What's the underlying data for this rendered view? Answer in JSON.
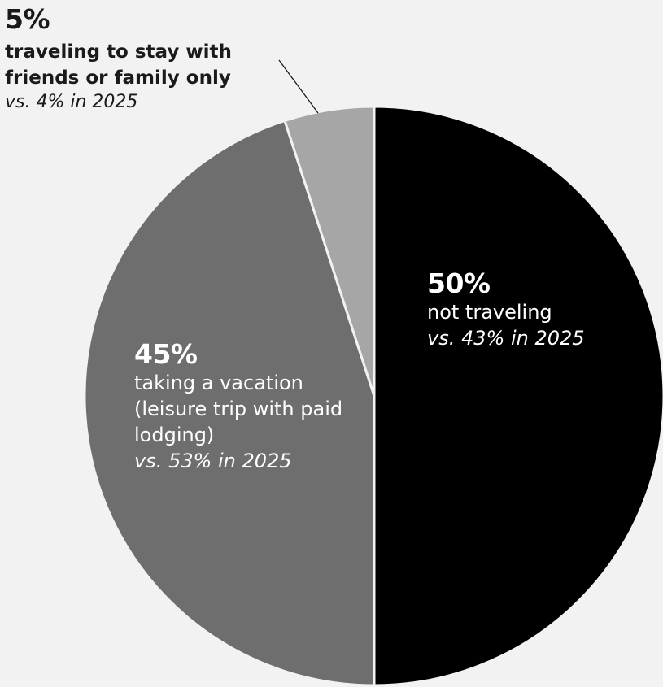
{
  "chart_data": {
    "type": "pie",
    "slices": [
      {
        "value": 50,
        "percent_label": "50%",
        "label": "not traveling",
        "comparison": "vs. 43% in 2025",
        "color": "#000000",
        "text_color": "#ffffff"
      },
      {
        "value": 45,
        "percent_label": "45%",
        "label": "taking a vacation (leisure trip with paid lodging)",
        "comparison": "vs. 53% in 2025",
        "color": "#6e6e6e",
        "text_color": "#ffffff"
      },
      {
        "value": 5,
        "percent_label": "5%",
        "label": "traveling to stay with friends or family only",
        "comparison": "vs. 4% in 2025",
        "color": "#a6a6a6",
        "text_color": "#1a1a1a"
      }
    ],
    "start": "12 o'clock",
    "direction": "clockwise",
    "separator_color": "#f2f2f2",
    "background": "#f2f2f2"
  }
}
